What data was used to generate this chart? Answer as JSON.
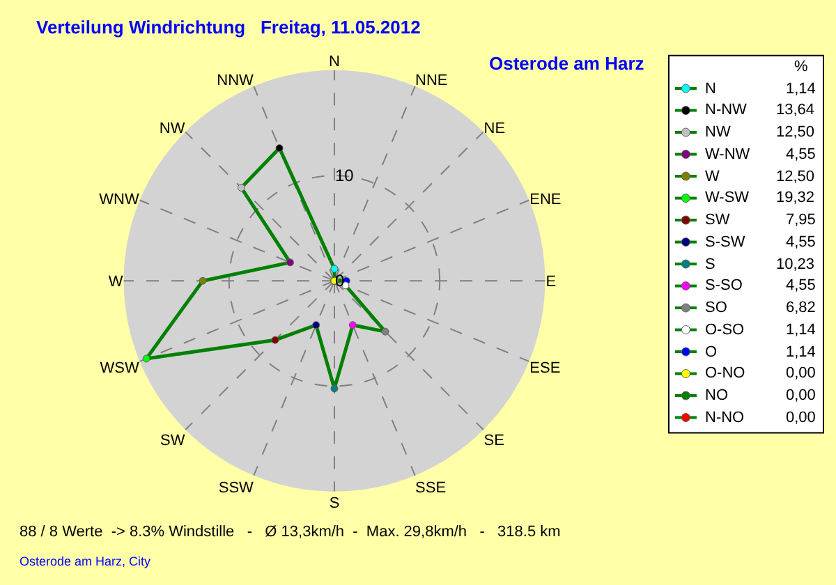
{
  "chart_data": [
    {
      "type": "radar",
      "title": "Verteilung Windrichtung   Freitag, 11.05.2012",
      "subtitle": "Osterode am Harz",
      "categories": [
        "N",
        "NNE",
        "NE",
        "ENE",
        "E",
        "ESE",
        "SE",
        "SSE",
        "S",
        "SSW",
        "SW",
        "WSW",
        "W",
        "WNW",
        "NW",
        "NNW"
      ],
      "series": [
        {
          "color": "#008000",
          "values": [
            1.14,
            0,
            0,
            0,
            1.14,
            1.14,
            6.82,
            4.55,
            10.23,
            4.55,
            7.95,
            19.32,
            12.5,
            4.55,
            12.5,
            13.64
          ],
          "colors": [
            "#00ffff",
            "#ff0000",
            "#008000",
            "#ffff00",
            "#0000ff",
            "#ffffff",
            "#808080",
            "#ff00ff",
            "#008080",
            "#000080",
            "#800000",
            "#00ff00",
            "#808000",
            "#800080",
            "#c0c0c0",
            "#000000"
          ]
        }
      ],
      "ylim": [
        0,
        20
      ],
      "yticks": [
        0,
        10
      ],
      "grid": true,
      "marker": "circle",
      "line_style": "solid",
      "annotations": [
        "88 / 8 Werte  -> 8.3% Windstille   -   Ø 13,3km/h  -  Max. 29,8km/h   -   318.5 km",
        "Osterode am Harz, City"
      ]
    },
    {
      "type": "other",
      "title": "%",
      "categories": [
        "N",
        "N-NW",
        "NW",
        "W-NW",
        "W",
        "W-SW",
        "SW",
        "S-SW",
        "S",
        "S-SO",
        "SO",
        "O-SO",
        "O",
        "O-NO",
        "NO",
        "N-NO"
      ],
      "value_labels": [
        "1,14",
        "13,64",
        "12,50",
        "4,55",
        "12,50",
        "19,32",
        "7,95",
        "4,55",
        "10,23",
        "4,55",
        "6,82",
        "1,14",
        "1,14",
        "0,00",
        "0,00",
        "0,00"
      ],
      "colors": [
        "#00ffff",
        "#000000",
        "#c0c0c0",
        "#800080",
        "#808000",
        "#00ff00",
        "#800000",
        "#000080",
        "#008080",
        "#ff00ff",
        "#808080",
        "#ffffff",
        "#0000ff",
        "#ffff00",
        "#008000",
        "#ff0000"
      ]
    }
  ]
}
